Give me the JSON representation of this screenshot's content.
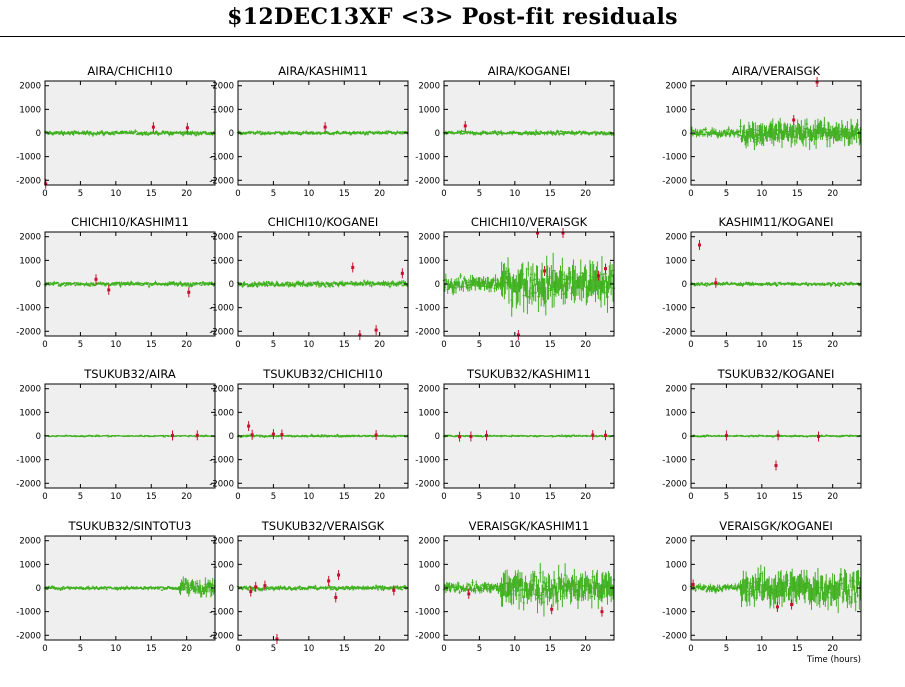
{
  "title": "$12DEC13XF <3> Post-fit residuals",
  "xlabel": "Time (hours)",
  "colors": {
    "plot_background": "#efefef",
    "good_points": "#3fb01e",
    "flagged_points": "#c8102e",
    "frame": "#000000"
  },
  "chart_data": [
    {
      "type": "scatter",
      "title": "AIRA/CHICHI10",
      "xlim": [
        0,
        24
      ],
      "ylim": [
        -2200,
        2200
      ],
      "yticks": [
        2000,
        1000,
        0,
        -1000,
        -2000
      ],
      "xticks": [
        0,
        5,
        10,
        15,
        20
      ],
      "noise": [
        [
          0,
          24,
          70
        ]
      ],
      "flagged": [
        [
          15.3,
          250
        ],
        [
          20.1,
          220
        ],
        [
          0.1,
          -2150
        ]
      ]
    },
    {
      "type": "scatter",
      "title": "AIRA/KASHIM11",
      "xlim": [
        0,
        24
      ],
      "ylim": [
        -2200,
        2200
      ],
      "yticks": [
        2000,
        1000,
        0,
        -1000,
        -2000
      ],
      "xticks": [
        0,
        5,
        10,
        15,
        20
      ],
      "noise": [
        [
          0,
          24,
          60
        ]
      ],
      "flagged": [
        [
          12.3,
          250
        ]
      ]
    },
    {
      "type": "scatter",
      "title": "AIRA/KOGANEI",
      "xlim": [
        0,
        24
      ],
      "ylim": [
        -2200,
        2200
      ],
      "yticks": [
        2000,
        1000,
        0,
        -1000,
        -2000
      ],
      "xticks": [
        0,
        5,
        10,
        15,
        20
      ],
      "noise": [
        [
          0,
          24,
          70
        ]
      ],
      "flagged": [
        [
          3.0,
          300
        ]
      ]
    },
    {
      "type": "scatter",
      "title": "AIRA/VERAISGK",
      "xlim": [
        0,
        24
      ],
      "ylim": [
        -2200,
        2200
      ],
      "yticks": [
        2000,
        1000,
        0,
        -1000,
        -2000
      ],
      "xticks": [
        0,
        5,
        10,
        15,
        20
      ],
      "noise": [
        [
          0,
          7,
          120
        ],
        [
          7,
          24,
          380
        ]
      ],
      "flagged": [
        [
          14.5,
          550
        ],
        [
          17.8,
          2350
        ]
      ]
    },
    {
      "type": "scatter",
      "title": "CHICHI10/KASHIM11",
      "xlim": [
        0,
        24
      ],
      "ylim": [
        -2200,
        2200
      ],
      "yticks": [
        2000,
        1000,
        0,
        -1000,
        -2000
      ],
      "xticks": [
        0,
        5,
        10,
        15,
        20
      ],
      "noise": [
        [
          0,
          24,
          70
        ]
      ],
      "flagged": [
        [
          7.2,
          200
        ],
        [
          9.0,
          -250
        ],
        [
          20.3,
          -350
        ]
      ]
    },
    {
      "type": "scatter",
      "title": "CHICHI10/KOGANEI",
      "xlim": [
        0,
        24
      ],
      "ylim": [
        -2200,
        2200
      ],
      "yticks": [
        2000,
        1000,
        0,
        -1000,
        -2000
      ],
      "xticks": [
        0,
        5,
        10,
        15,
        20
      ],
      "noise": [
        [
          0,
          24,
          90
        ]
      ],
      "flagged": [
        [
          16.2,
          700
        ],
        [
          19.5,
          -1950
        ],
        [
          23.2,
          450
        ],
        [
          17.2,
          -2200
        ]
      ]
    },
    {
      "type": "scatter",
      "title": "CHICHI10/VERAISGK",
      "xlim": [
        0,
        24
      ],
      "ylim": [
        -2200,
        2200
      ],
      "yticks": [
        2000,
        1000,
        0,
        -1000,
        -2000
      ],
      "xticks": [
        0,
        5,
        10,
        15,
        20
      ],
      "noise": [
        [
          0,
          8,
          230
        ],
        [
          8,
          24,
          650
        ]
      ],
      "flagged": [
        [
          13.2,
          2300
        ],
        [
          16.8,
          2300
        ],
        [
          14.2,
          550
        ],
        [
          21.8,
          350
        ],
        [
          22.8,
          650
        ],
        [
          10.5,
          -2250
        ]
      ]
    },
    {
      "type": "scatter",
      "title": "KASHIM11/KOGANEI",
      "xlim": [
        0,
        24
      ],
      "ylim": [
        -2200,
        2200
      ],
      "yticks": [
        2000,
        1000,
        0,
        -1000,
        -2000
      ],
      "xticks": [
        0,
        5,
        10,
        15,
        20
      ],
      "noise": [
        [
          0,
          24,
          60
        ]
      ],
      "flagged": [
        [
          1.2,
          1650
        ],
        [
          3.5,
          50
        ]
      ]
    },
    {
      "type": "scatter",
      "title": "TSUKUB32/AIRA",
      "xlim": [
        0,
        24
      ],
      "ylim": [
        -2200,
        2200
      ],
      "yticks": [
        2000,
        1000,
        0,
        -1000,
        -2000
      ],
      "xticks": [
        0,
        5,
        10,
        15,
        20
      ],
      "noise": [
        [
          0,
          24,
          30
        ]
      ],
      "flagged": [
        [
          18.0,
          20
        ],
        [
          21.5,
          30
        ]
      ]
    },
    {
      "type": "scatter",
      "title": "TSUKUB32/CHICHI10",
      "xlim": [
        0,
        24
      ],
      "ylim": [
        -2200,
        2200
      ],
      "yticks": [
        2000,
        1000,
        0,
        -1000,
        -2000
      ],
      "xticks": [
        0,
        5,
        10,
        15,
        20
      ],
      "noise": [
        [
          0,
          24,
          40
        ]
      ],
      "flagged": [
        [
          1.5,
          420
        ],
        [
          2.0,
          50
        ],
        [
          5.0,
          80
        ],
        [
          6.2,
          60
        ],
        [
          19.5,
          40
        ]
      ]
    },
    {
      "type": "scatter",
      "title": "TSUKUB32/KASHIM11",
      "xlim": [
        0,
        24
      ],
      "ylim": [
        -2200,
        2200
      ],
      "yticks": [
        2000,
        1000,
        0,
        -1000,
        -2000
      ],
      "xticks": [
        0,
        5,
        10,
        15,
        20
      ],
      "noise": [
        [
          0,
          24,
          30
        ]
      ],
      "flagged": [
        [
          2.2,
          -30
        ],
        [
          3.8,
          -20
        ],
        [
          6.0,
          20
        ],
        [
          21.0,
          40
        ],
        [
          22.8,
          30
        ]
      ]
    },
    {
      "type": "scatter",
      "title": "TSUKUB32/KOGANEI",
      "xlim": [
        0,
        24
      ],
      "ylim": [
        -2200,
        2200
      ],
      "yticks": [
        2000,
        1000,
        0,
        -1000,
        -2000
      ],
      "xticks": [
        0,
        5,
        10,
        15,
        20
      ],
      "noise": [
        [
          0,
          24,
          35
        ]
      ],
      "flagged": [
        [
          12.0,
          -1250
        ],
        [
          5.0,
          20
        ],
        [
          12.3,
          30
        ],
        [
          18.0,
          -20
        ]
      ]
    },
    {
      "type": "scatter",
      "title": "TSUKUB32/SINTOTU3",
      "xlim": [
        0,
        24
      ],
      "ylim": [
        -2200,
        2200
      ],
      "yticks": [
        2000,
        1000,
        0,
        -1000,
        -2000
      ],
      "xticks": [
        0,
        5,
        10,
        15,
        20
      ],
      "noise": [
        [
          0,
          19,
          60
        ],
        [
          19,
          24,
          280
        ]
      ],
      "flagged": []
    },
    {
      "type": "scatter",
      "title": "TSUKUB32/VERAISGK",
      "xlim": [
        0,
        24
      ],
      "ylim": [
        -2200,
        2200
      ],
      "yticks": [
        2000,
        1000,
        0,
        -1000,
        -2000
      ],
      "xticks": [
        0,
        5,
        10,
        15,
        20
      ],
      "noise": [
        [
          0,
          24,
          70
        ]
      ],
      "flagged": [
        [
          1.8,
          -150
        ],
        [
          2.5,
          50
        ],
        [
          3.8,
          100
        ],
        [
          5.5,
          -2200
        ],
        [
          12.8,
          300
        ],
        [
          14.2,
          550
        ],
        [
          13.8,
          -400
        ],
        [
          22.0,
          -100
        ]
      ]
    },
    {
      "type": "scatter",
      "title": "VERAISGK/KASHIM11",
      "xlim": [
        0,
        24
      ],
      "ylim": [
        -2200,
        2200
      ],
      "yticks": [
        2000,
        1000,
        0,
        -1000,
        -2000
      ],
      "xticks": [
        0,
        5,
        10,
        15,
        20
      ],
      "noise": [
        [
          0,
          8,
          160
        ],
        [
          8,
          24,
          520
        ]
      ],
      "flagged": [
        [
          3.5,
          -250
        ],
        [
          15.2,
          -900
        ],
        [
          22.3,
          -1000
        ]
      ]
    },
    {
      "type": "scatter",
      "title": "VERAISGK/KOGANEI",
      "xlim": [
        0,
        24
      ],
      "ylim": [
        -2200,
        2200
      ],
      "yticks": [
        2000,
        1000,
        0,
        -1000,
        -2000
      ],
      "xticks": [
        0,
        5,
        10,
        15,
        20
      ],
      "noise": [
        [
          0,
          7,
          120
        ],
        [
          7,
          24,
          550
        ]
      ],
      "flagged": [
        [
          0.3,
          150
        ],
        [
          12.2,
          -800
        ],
        [
          14.2,
          -700
        ]
      ]
    }
  ]
}
